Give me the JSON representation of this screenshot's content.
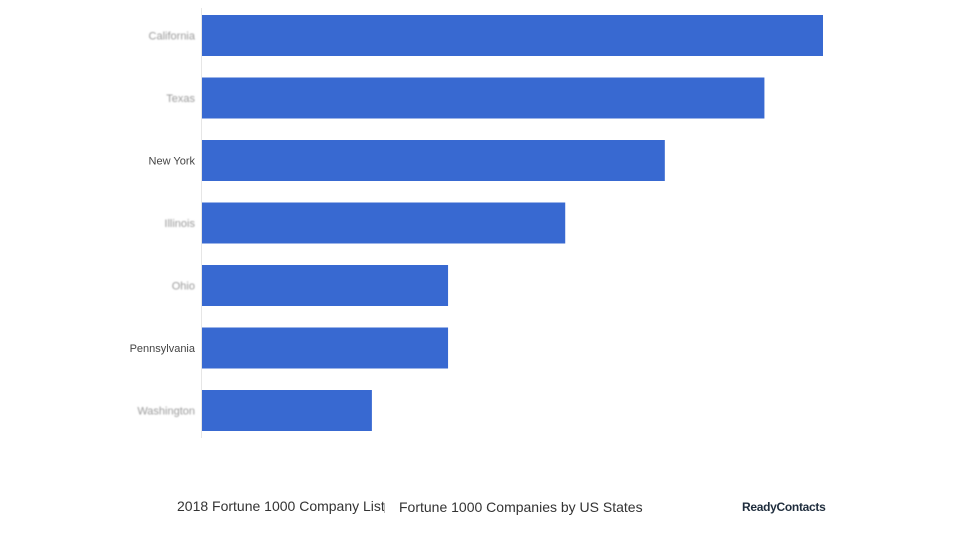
{
  "chart_data": {
    "type": "bar",
    "orientation": "horizontal",
    "categories": [
      "California",
      "Texas",
      "New York",
      "Illinois",
      "Ohio",
      "Pennsylvania",
      "Washington"
    ],
    "values": [
      53,
      48,
      39.5,
      31,
      21,
      21,
      14.5
    ],
    "bar_color": "#3869d1",
    "xlim": [
      0,
      53
    ],
    "grid": false,
    "legend": "none",
    "title": "Fortune 1000 Companies by US States"
  },
  "footer": {
    "source": "2018  Fortune 1000 Company List",
    "title": "Fortune 1000 Companies by US States",
    "brand": "ReadyContacts"
  }
}
